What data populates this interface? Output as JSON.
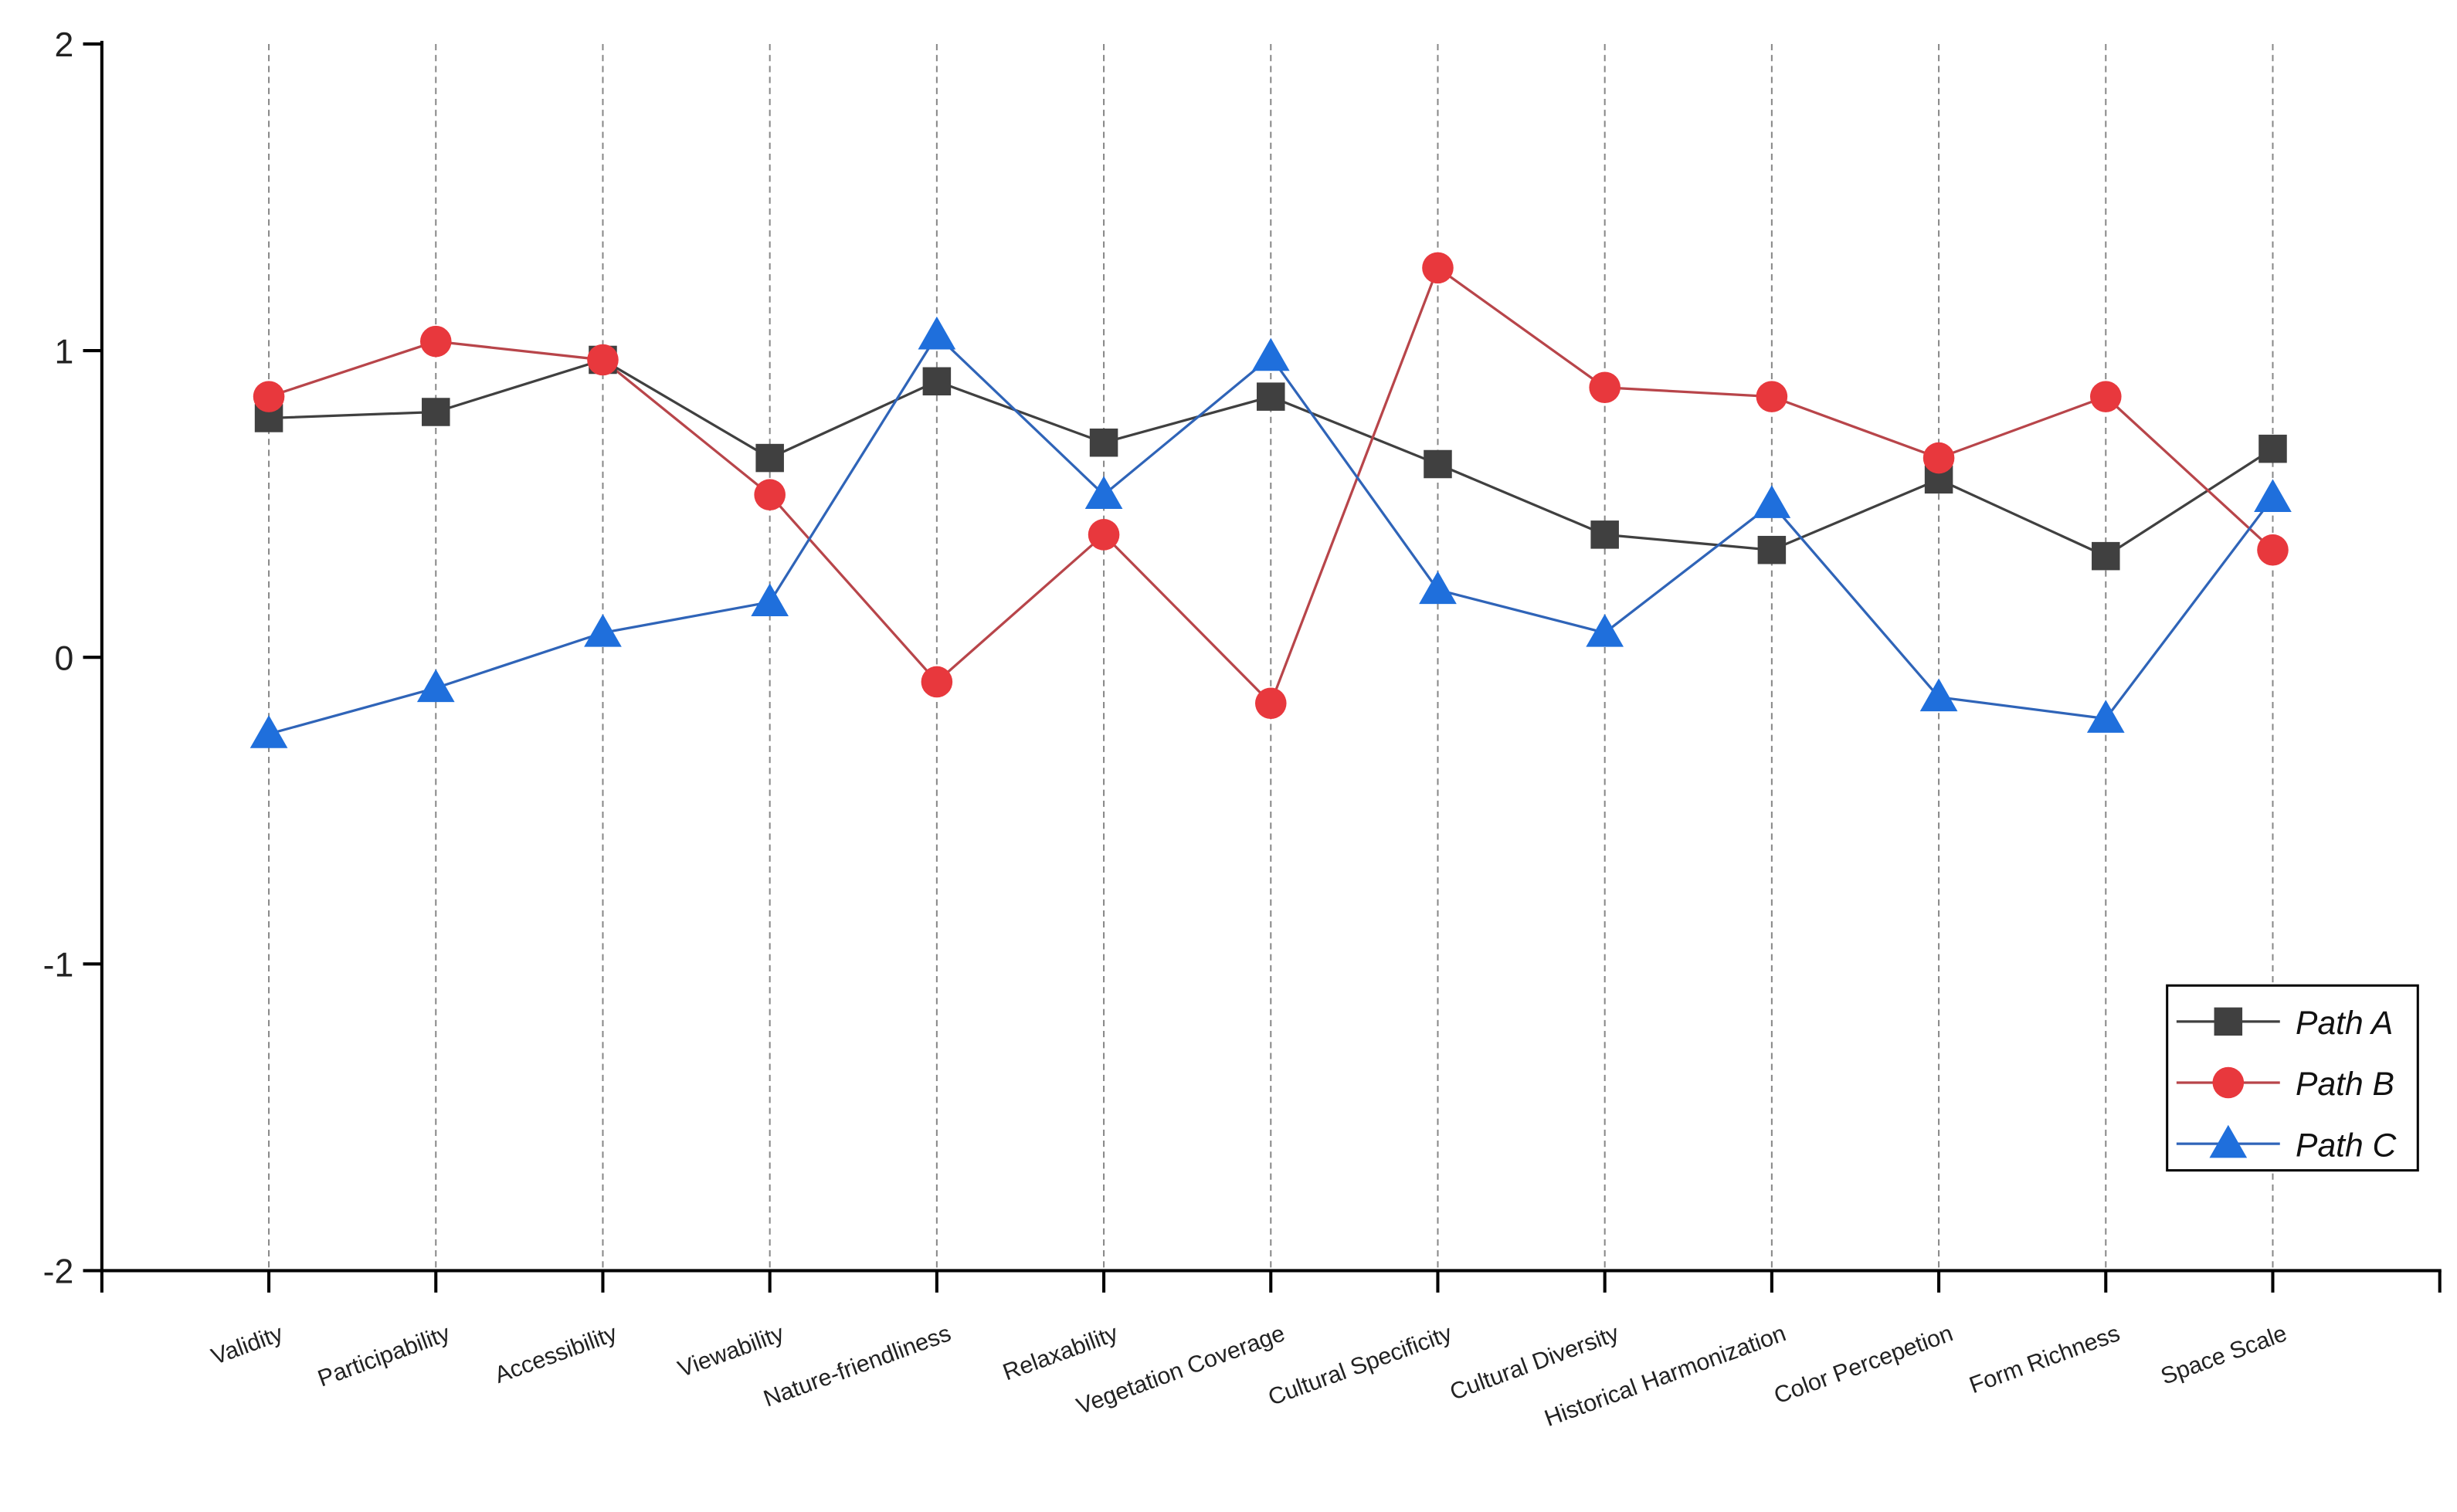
{
  "chart_data": {
    "type": "line",
    "categories": [
      "Validity",
      "Participability",
      "Accessibility",
      "Viewability",
      "Nature-friendliness",
      "Relaxability",
      "Vegetation Coverage",
      "Cultural Specificity",
      "Cultural Diversity",
      "Historical Harmonization",
      "Color Percepetion",
      "Form Richness",
      "Space Scale"
    ],
    "series": [
      {
        "name": "Path A",
        "color": "#404040",
        "marker": "square",
        "values": [
          0.78,
          0.8,
          0.97,
          0.65,
          0.9,
          0.7,
          0.85,
          0.63,
          0.4,
          0.35,
          0.58,
          0.33,
          0.68
        ]
      },
      {
        "name": "Path B",
        "color": "#e8383d",
        "marker": "circle",
        "values": [
          0.85,
          1.03,
          0.97,
          0.53,
          -0.08,
          0.4,
          -0.15,
          1.27,
          0.88,
          0.85,
          0.65,
          0.85,
          0.35
        ]
      },
      {
        "name": "Path C",
        "color": "#1f6fdc",
        "marker": "triangle",
        "values": [
          -0.25,
          -0.1,
          0.08,
          0.18,
          1.05,
          0.53,
          0.98,
          0.22,
          0.08,
          0.5,
          -0.13,
          -0.2,
          0.52
        ]
      }
    ],
    "ylim": [
      -2,
      2
    ],
    "yticks": [
      -2,
      -1,
      0,
      1,
      2
    ],
    "grid": true,
    "legend": "lower right"
  }
}
